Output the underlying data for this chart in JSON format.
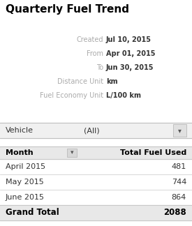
{
  "title": "Quarterly Fuel Trend",
  "meta_labels": [
    "Created",
    "From",
    "To",
    "Distance Unit",
    "Fuel Economy Unit"
  ],
  "meta_values": [
    "Jul 10, 2015",
    "Apr 01, 2015",
    "Jun 30, 2015",
    "km",
    "L/100 km"
  ],
  "vehicle_label": "Vehicle",
  "vehicle_value": "(All)",
  "col1_header": "Month",
  "col2_header": "Total Fuel Used",
  "rows": [
    [
      "April 2015",
      "481"
    ],
    [
      "May 2015",
      "744"
    ],
    [
      "June 2015",
      "864"
    ]
  ],
  "total_label": "Grand Total",
  "total_value": "2088",
  "bg_color": "#ffffff",
  "label_color": "#aaaaaa",
  "value_color": "#333333",
  "title_color": "#000000",
  "table_header_bg": "#e8e8e8",
  "row_line_color": "#c8c8c8",
  "vehicle_bg": "#f0f0f0",
  "vehicle_border": "#c0c0c0",
  "grand_total_bg": "#e8e8e8"
}
